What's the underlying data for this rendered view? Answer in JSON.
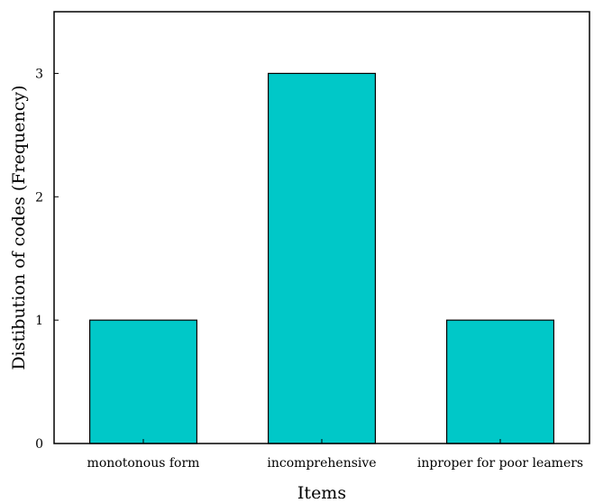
{
  "chart_data": {
    "type": "bar",
    "categories": [
      "monotonous form",
      "incomprehensive",
      "inproper for poor leamers"
    ],
    "values": [
      1,
      3,
      1
    ],
    "title": "",
    "xlabel": "Items",
    "ylabel": "Distibution of codes (Frequency)",
    "ylim": [
      0,
      3.5
    ],
    "yticks": [
      0,
      1,
      2,
      3
    ],
    "grid": false,
    "colors": {
      "bar_fill": "#00C8C8",
      "bar_stroke": "#000000",
      "axis": "#000000"
    }
  }
}
